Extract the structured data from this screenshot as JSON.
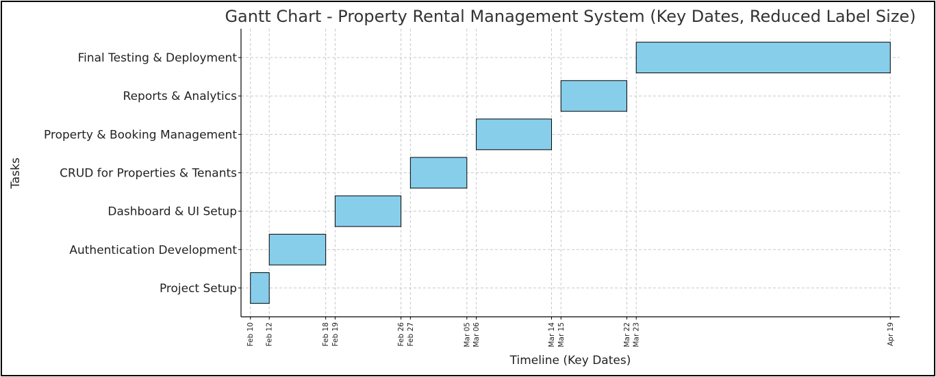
{
  "chart_data": {
    "type": "gantt",
    "title": "Gantt Chart - Property Rental Management System (Key Dates, Reduced Label Size)",
    "xlabel": "Timeline (Key Dates)",
    "ylabel": "Tasks",
    "bar_color": "#87CEEB",
    "grid": true,
    "tasks": [
      {
        "name": "Project Setup",
        "start": "2025-02-10",
        "end": "2025-02-12"
      },
      {
        "name": "Authentication Development",
        "start": "2025-02-12",
        "end": "2025-02-18"
      },
      {
        "name": "Dashboard & UI Setup",
        "start": "2025-02-19",
        "end": "2025-02-26"
      },
      {
        "name": "CRUD for Properties & Tenants",
        "start": "2025-02-27",
        "end": "2025-03-05"
      },
      {
        "name": "Property & Booking Management",
        "start": "2025-03-06",
        "end": "2025-03-14"
      },
      {
        "name": "Reports & Analytics",
        "start": "2025-03-15",
        "end": "2025-03-22"
      },
      {
        "name": "Final Testing & Deployment",
        "start": "2025-03-23",
        "end": "2025-04-19"
      }
    ],
    "x_ticks": [
      {
        "date": "2025-02-10",
        "label": "Feb 10"
      },
      {
        "date": "2025-02-12",
        "label": "Feb 12"
      },
      {
        "date": "2025-02-18",
        "label": "Feb 18"
      },
      {
        "date": "2025-02-19",
        "label": "Feb 19"
      },
      {
        "date": "2025-02-26",
        "label": "Feb 26"
      },
      {
        "date": "2025-02-27",
        "label": "Feb 27"
      },
      {
        "date": "2025-03-05",
        "label": "Mar 05"
      },
      {
        "date": "2025-03-06",
        "label": "Mar 06"
      },
      {
        "date": "2025-03-14",
        "label": "Mar 14"
      },
      {
        "date": "2025-03-15",
        "label": "Mar 15"
      },
      {
        "date": "2025-03-22",
        "label": "Mar 22"
      },
      {
        "date": "2025-03-23",
        "label": "Mar 23"
      },
      {
        "date": "2025-04-19",
        "label": "Apr 19"
      }
    ],
    "xlim": [
      "2025-02-09",
      "2025-04-20"
    ]
  }
}
